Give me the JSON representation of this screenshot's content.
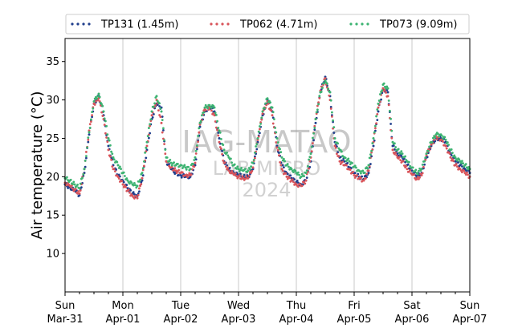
{
  "chart_data": {
    "type": "scatter",
    "ylabel": "Air temperature (°C)",
    "xlabel": "",
    "ylim": [
      5,
      38
    ],
    "yticks": [
      10,
      15,
      20,
      25,
      30,
      35
    ],
    "xlim": [
      "2024-03-31T00:00",
      "2024-04-07T00:00"
    ],
    "xticks": [
      {
        "x": "2024-03-31T00:00",
        "day": "Sun",
        "date": "Mar-31"
      },
      {
        "x": "2024-04-01T00:00",
        "day": "Mon",
        "date": "Apr-01"
      },
      {
        "x": "2024-04-02T00:00",
        "day": "Tue",
        "date": "Apr-02"
      },
      {
        "x": "2024-04-03T00:00",
        "day": "Wed",
        "date": "Apr-03"
      },
      {
        "x": "2024-04-04T00:00",
        "day": "Thu",
        "date": "Apr-04"
      },
      {
        "x": "2024-04-05T00:00",
        "day": "Fri",
        "date": "Apr-05"
      },
      {
        "x": "2024-04-06T00:00",
        "day": "Sat",
        "date": "Apr-06"
      },
      {
        "x": "2024-04-07T00:00",
        "day": "Sun",
        "date": "Apr-07"
      }
    ],
    "grid": "x",
    "legend_placement": "top",
    "watermark": [
      "IAG-MATAO",
      "LAB MICRO",
      "2024"
    ],
    "series": [
      {
        "name": "TP131 (1.45m)",
        "color": "#1f3e8c",
        "x": [
          "2024-03-31T00:00",
          "2024-03-31T02:00",
          "2024-03-31T04:00",
          "2024-03-31T06:00",
          "2024-03-31T08:00",
          "2024-03-31T10:00",
          "2024-03-31T12:00",
          "2024-03-31T14:00",
          "2024-03-31T16:00",
          "2024-03-31T18:00",
          "2024-03-31T20:00",
          "2024-03-31T22:00",
          "2024-04-01T00:00",
          "2024-04-01T02:00",
          "2024-04-01T04:00",
          "2024-04-01T06:00",
          "2024-04-01T08:00",
          "2024-04-01T10:00",
          "2024-04-01T12:00",
          "2024-04-01T14:00",
          "2024-04-01T16:00",
          "2024-04-01T18:00",
          "2024-04-01T20:00",
          "2024-04-01T22:00",
          "2024-04-02T00:00",
          "2024-04-02T02:00",
          "2024-04-02T04:00",
          "2024-04-02T06:00",
          "2024-04-02T08:00",
          "2024-04-02T10:00",
          "2024-04-02T12:00",
          "2024-04-02T14:00",
          "2024-04-02T16:00",
          "2024-04-02T18:00",
          "2024-04-02T20:00",
          "2024-04-02T22:00",
          "2024-04-03T00:00",
          "2024-04-03T02:00",
          "2024-04-03T04:00",
          "2024-04-03T06:00",
          "2024-04-03T08:00",
          "2024-04-03T10:00",
          "2024-04-03T12:00",
          "2024-04-03T14:00",
          "2024-04-03T16:00",
          "2024-04-03T18:00",
          "2024-04-03T20:00",
          "2024-04-03T22:00",
          "2024-04-04T00:00",
          "2024-04-04T02:00",
          "2024-04-04T04:00",
          "2024-04-04T06:00",
          "2024-04-04T08:00",
          "2024-04-04T10:00",
          "2024-04-04T12:00",
          "2024-04-04T14:00",
          "2024-04-04T16:00",
          "2024-04-04T18:00",
          "2024-04-04T20:00",
          "2024-04-04T22:00",
          "2024-04-05T00:00",
          "2024-04-05T02:00",
          "2024-04-05T04:00",
          "2024-04-05T06:00",
          "2024-04-05T08:00",
          "2024-04-05T10:00",
          "2024-04-05T12:00",
          "2024-04-05T14:00",
          "2024-04-05T16:00",
          "2024-04-05T18:00",
          "2024-04-05T20:00",
          "2024-04-05T22:00",
          "2024-04-06T00:00",
          "2024-04-06T02:00",
          "2024-04-06T04:00",
          "2024-04-06T06:00",
          "2024-04-06T08:00",
          "2024-04-06T10:00",
          "2024-04-06T12:00",
          "2024-04-06T14:00",
          "2024-04-06T16:00",
          "2024-04-06T18:00",
          "2024-04-06T20:00",
          "2024-04-06T22:00",
          "2024-04-07T00:00"
        ],
        "y": [
          19.0,
          18.6,
          18.2,
          17.6,
          20.5,
          25.5,
          29.5,
          30.5,
          28.0,
          24.0,
          21.5,
          20.2,
          19.5,
          18.5,
          17.8,
          17.5,
          19.5,
          23.5,
          27.5,
          29.5,
          29.0,
          22.0,
          21.0,
          20.5,
          20.2,
          20.0,
          20.0,
          21.5,
          26.5,
          28.5,
          29.2,
          28.5,
          25.0,
          22.0,
          21.0,
          20.5,
          20.2,
          20.0,
          20.0,
          21.0,
          24.5,
          28.0,
          30.0,
          28.5,
          24.0,
          21.5,
          20.5,
          19.8,
          19.3,
          19.0,
          19.5,
          22.0,
          27.0,
          31.0,
          33.0,
          30.5,
          24.5,
          22.5,
          22.0,
          21.2,
          20.5,
          20.0,
          19.7,
          20.5,
          24.0,
          28.5,
          31.5,
          31.0,
          24.0,
          23.0,
          22.5,
          21.5,
          20.8,
          20.0,
          20.5,
          22.5,
          24.0,
          25.0,
          25.0,
          24.5,
          23.0,
          22.0,
          21.5,
          21.0,
          20.5
        ]
      },
      {
        "name": "TP062 (4.71m)",
        "color": "#d9545a",
        "x": [
          "2024-03-31T00:00",
          "2024-03-31T02:00",
          "2024-03-31T04:00",
          "2024-03-31T06:00",
          "2024-03-31T08:00",
          "2024-03-31T10:00",
          "2024-03-31T12:00",
          "2024-03-31T14:00",
          "2024-03-31T16:00",
          "2024-03-31T18:00",
          "2024-03-31T20:00",
          "2024-03-31T22:00",
          "2024-04-01T00:00",
          "2024-04-01T02:00",
          "2024-04-01T04:00",
          "2024-04-01T06:00",
          "2024-04-01T08:00",
          "2024-04-01T10:00",
          "2024-04-01T12:00",
          "2024-04-01T14:00",
          "2024-04-01T16:00",
          "2024-04-01T18:00",
          "2024-04-01T20:00",
          "2024-04-01T22:00",
          "2024-04-02T00:00",
          "2024-04-02T02:00",
          "2024-04-02T04:00",
          "2024-04-02T06:00",
          "2024-04-02T08:00",
          "2024-04-02T10:00",
          "2024-04-02T12:00",
          "2024-04-02T14:00",
          "2024-04-02T16:00",
          "2024-04-02T18:00",
          "2024-04-02T20:00",
          "2024-04-02T22:00",
          "2024-04-03T00:00",
          "2024-04-03T02:00",
          "2024-04-03T04:00",
          "2024-04-03T06:00",
          "2024-04-03T08:00",
          "2024-04-03T10:00",
          "2024-04-03T12:00",
          "2024-04-03T14:00",
          "2024-04-03T16:00",
          "2024-04-03T18:00",
          "2024-04-03T20:00",
          "2024-04-03T22:00",
          "2024-04-04T00:00",
          "2024-04-04T02:00",
          "2024-04-04T04:00",
          "2024-04-04T06:00",
          "2024-04-04T08:00",
          "2024-04-04T10:00",
          "2024-04-04T12:00",
          "2024-04-04T14:00",
          "2024-04-04T16:00",
          "2024-04-04T18:00",
          "2024-04-04T20:00",
          "2024-04-04T22:00",
          "2024-04-05T00:00",
          "2024-04-05T02:00",
          "2024-04-05T04:00",
          "2024-04-05T06:00",
          "2024-04-05T08:00",
          "2024-04-05T10:00",
          "2024-04-05T12:00",
          "2024-04-05T14:00",
          "2024-04-05T16:00",
          "2024-04-05T18:00",
          "2024-04-05T20:00",
          "2024-04-05T22:00",
          "2024-04-06T00:00",
          "2024-04-06T02:00",
          "2024-04-06T04:00",
          "2024-04-06T06:00",
          "2024-04-06T08:00",
          "2024-04-06T10:00",
          "2024-04-06T12:00",
          "2024-04-06T14:00",
          "2024-04-06T16:00",
          "2024-04-06T18:00",
          "2024-04-06T20:00",
          "2024-04-06T22:00",
          "2024-04-07T00:00"
        ],
        "y": [
          19.2,
          18.8,
          18.3,
          17.8,
          21.0,
          26.0,
          29.5,
          30.2,
          27.5,
          23.5,
          21.0,
          20.0,
          19.0,
          18.2,
          17.5,
          17.2,
          19.8,
          24.0,
          28.0,
          30.0,
          27.0,
          22.0,
          21.2,
          20.8,
          20.5,
          20.2,
          20.2,
          21.8,
          26.8,
          28.8,
          29.0,
          28.0,
          24.5,
          21.8,
          20.8,
          20.3,
          20.0,
          19.8,
          19.8,
          21.2,
          24.8,
          28.2,
          29.8,
          28.0,
          23.8,
          21.0,
          20.0,
          19.5,
          19.0,
          18.8,
          19.5,
          22.5,
          27.5,
          31.2,
          32.8,
          30.0,
          24.0,
          22.0,
          21.5,
          21.0,
          20.2,
          19.8,
          19.5,
          20.8,
          24.5,
          29.0,
          31.5,
          30.5,
          23.5,
          22.5,
          22.0,
          21.0,
          20.3,
          19.7,
          20.2,
          22.8,
          24.2,
          25.2,
          24.8,
          24.0,
          22.5,
          21.5,
          21.0,
          20.5,
          20.0
        ]
      },
      {
        "name": "TP073 (9.09m)",
        "color": "#3cb371",
        "x": [
          "2024-03-31T00:00",
          "2024-03-31T02:00",
          "2024-03-31T04:00",
          "2024-03-31T06:00",
          "2024-03-31T08:00",
          "2024-03-31T10:00",
          "2024-03-31T12:00",
          "2024-03-31T14:00",
          "2024-03-31T16:00",
          "2024-03-31T18:00",
          "2024-03-31T20:00",
          "2024-03-31T22:00",
          "2024-04-01T00:00",
          "2024-04-01T02:00",
          "2024-04-01T04:00",
          "2024-04-01T06:00",
          "2024-04-01T08:00",
          "2024-04-01T10:00",
          "2024-04-01T12:00",
          "2024-04-01T14:00",
          "2024-04-01T16:00",
          "2024-04-01T18:00",
          "2024-04-01T20:00",
          "2024-04-01T22:00",
          "2024-04-02T00:00",
          "2024-04-02T02:00",
          "2024-04-02T04:00",
          "2024-04-02T06:00",
          "2024-04-02T08:00",
          "2024-04-02T10:00",
          "2024-04-02T12:00",
          "2024-04-02T14:00",
          "2024-04-02T16:00",
          "2024-04-02T18:00",
          "2024-04-02T20:00",
          "2024-04-02T22:00",
          "2024-04-03T00:00",
          "2024-04-03T02:00",
          "2024-04-03T04:00",
          "2024-04-03T06:00",
          "2024-04-03T08:00",
          "2024-04-03T10:00",
          "2024-04-03T12:00",
          "2024-04-03T14:00",
          "2024-04-03T16:00",
          "2024-04-03T18:00",
          "2024-04-03T20:00",
          "2024-04-03T22:00",
          "2024-04-04T00:00",
          "2024-04-04T02:00",
          "2024-04-04T04:00",
          "2024-04-04T06:00",
          "2024-04-04T08:00",
          "2024-04-04T10:00",
          "2024-04-04T12:00",
          "2024-04-04T14:00",
          "2024-04-04T16:00",
          "2024-04-04T18:00",
          "2024-04-04T20:00",
          "2024-04-04T22:00",
          "2024-04-05T00:00",
          "2024-04-05T02:00",
          "2024-04-05T04:00",
          "2024-04-05T06:00",
          "2024-04-05T08:00",
          "2024-04-05T10:00",
          "2024-04-05T12:00",
          "2024-04-05T14:00",
          "2024-04-05T16:00",
          "2024-04-05T18:00",
          "2024-04-05T20:00",
          "2024-04-05T22:00",
          "2024-04-06T00:00",
          "2024-04-06T02:00",
          "2024-04-06T04:00",
          "2024-04-06T06:00",
          "2024-04-06T08:00",
          "2024-04-06T10:00",
          "2024-04-06T12:00",
          "2024-04-06T14:00",
          "2024-04-06T16:00",
          "2024-04-06T18:00",
          "2024-04-06T20:00",
          "2024-04-06T22:00",
          "2024-04-07T00:00"
        ],
        "y": [
          19.8,
          19.5,
          19.0,
          18.5,
          21.0,
          25.8,
          29.8,
          30.8,
          28.5,
          25.0,
          22.5,
          21.5,
          20.5,
          19.5,
          19.0,
          18.8,
          20.5,
          24.5,
          28.5,
          30.5,
          28.5,
          22.5,
          21.8,
          21.5,
          21.5,
          21.2,
          21.0,
          22.5,
          27.0,
          29.0,
          29.3,
          29.0,
          26.0,
          23.5,
          22.5,
          21.5,
          21.0,
          20.8,
          20.8,
          21.8,
          25.0,
          28.5,
          30.2,
          29.0,
          25.0,
          22.5,
          21.5,
          21.0,
          20.5,
          20.0,
          20.5,
          23.0,
          27.5,
          31.0,
          32.5,
          31.0,
          25.0,
          23.5,
          22.5,
          22.0,
          21.3,
          20.8,
          20.5,
          21.5,
          25.0,
          29.5,
          32.0,
          31.5,
          24.5,
          23.5,
          23.0,
          22.0,
          21.2,
          20.5,
          21.0,
          23.0,
          24.5,
          25.5,
          25.5,
          24.8,
          23.5,
          22.5,
          22.0,
          21.5,
          21.0
        ]
      }
    ]
  }
}
